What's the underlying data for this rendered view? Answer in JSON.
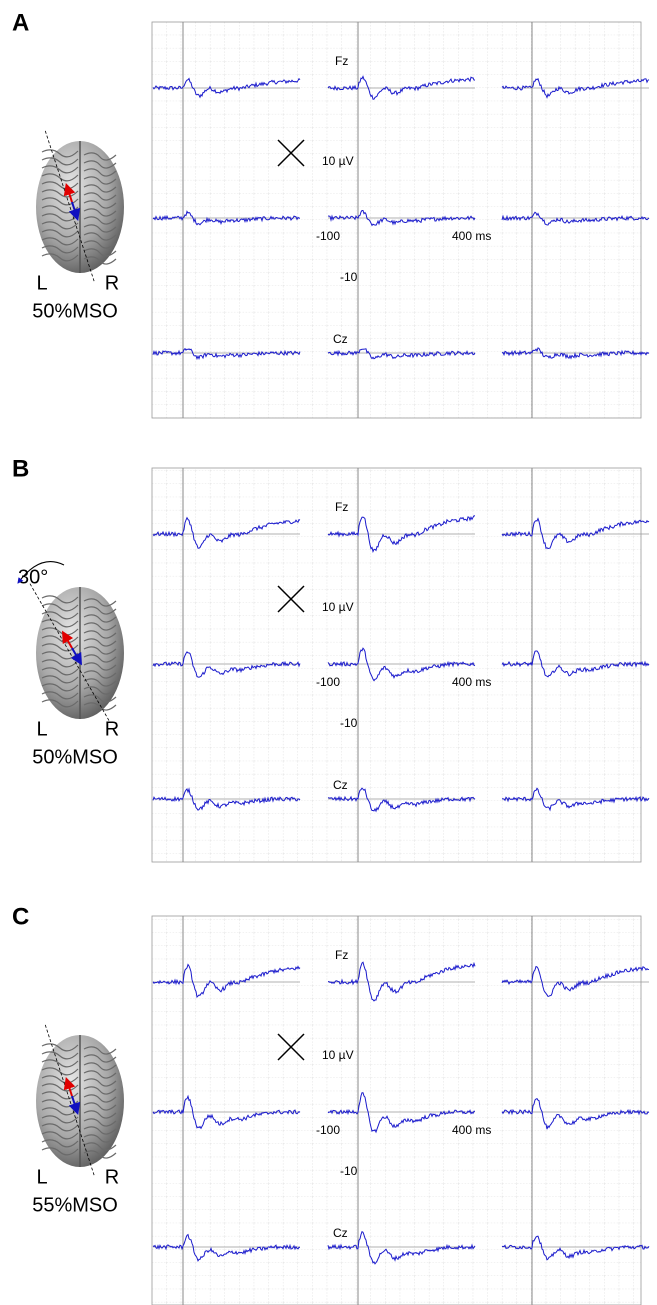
{
  "panels": [
    {
      "label": "A",
      "channel_top": "Fz",
      "channel_bottom": "Cz",
      "scale_amplitude": "10 µV",
      "scale_time_start": "-100",
      "scale_time_end": "400 ms",
      "scale_amplitude_negative": "-10",
      "left": "L",
      "right": "R",
      "intensity": "50%MSO"
    },
    {
      "label": "B",
      "angle": "30°",
      "channel_top": "Fz",
      "channel_bottom": "Cz",
      "scale_amplitude": "10 µV",
      "scale_time_start": "-100",
      "scale_time_end": "400 ms",
      "scale_amplitude_negative": "-10",
      "left": "L",
      "right": "R",
      "intensity": "50%MSO"
    },
    {
      "label": "C",
      "channel_top": "Fz",
      "channel_bottom": "Cz",
      "scale_amplitude": "10 µV",
      "scale_time_start": "-100",
      "scale_time_end": "400 ms",
      "scale_amplitude_negative": "-10",
      "left": "L",
      "right": "R",
      "intensity": "55%MSO"
    }
  ]
}
